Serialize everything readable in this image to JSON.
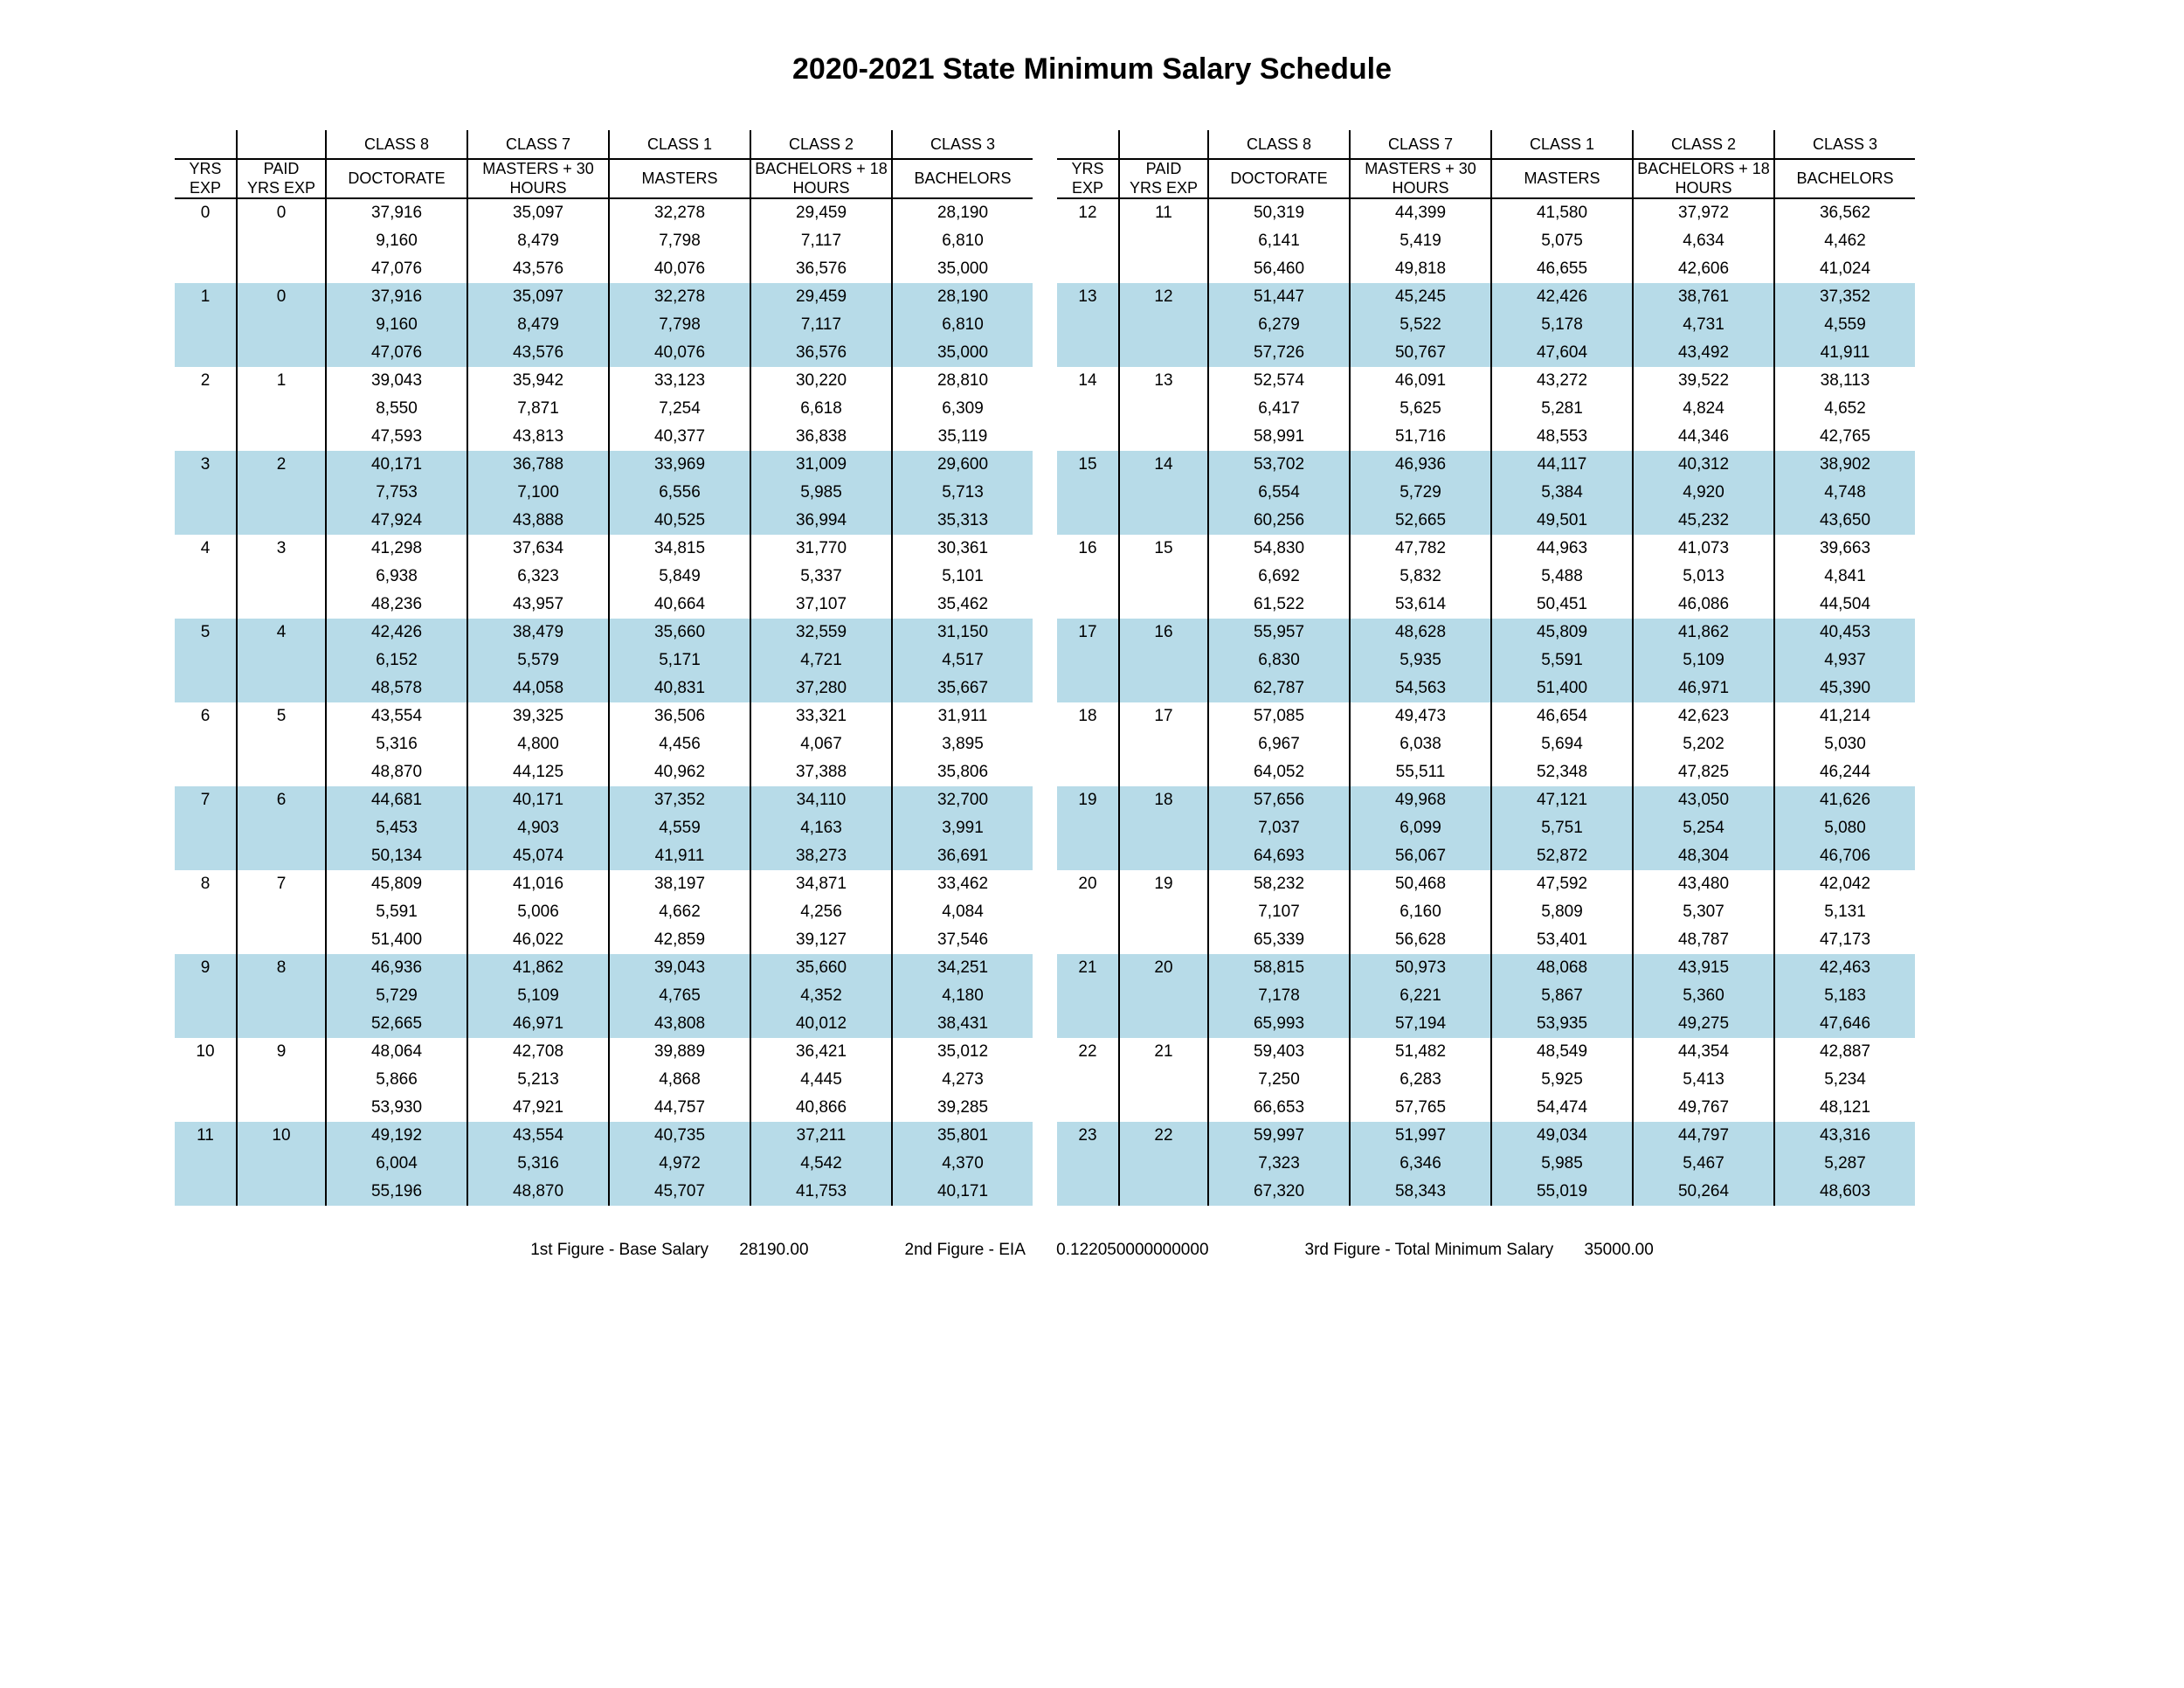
{
  "title": "2020-2021 State Minimum Salary Schedule",
  "colors": {
    "shade": "#b7dbe8",
    "border": "#000000",
    "background": "#ffffff",
    "text": "#000000"
  },
  "header_top": [
    "",
    "",
    "CLASS 8",
    "CLASS 7",
    "CLASS 1",
    "CLASS 2",
    "CLASS 3"
  ],
  "header_bot": [
    "YRS EXP",
    "PAID YRS EXP",
    "DOCTORATE",
    "MASTERS + 30 HOURS",
    "MASTERS",
    "BACHELORS + 18 HOURS",
    "BACHELORS"
  ],
  "left_rows": [
    {
      "yrs": "0",
      "paid": "0",
      "shade": false,
      "v": [
        [
          "37,916",
          "35,097",
          "32,278",
          "29,459",
          "28,190"
        ],
        [
          "9,160",
          "8,479",
          "7,798",
          "7,117",
          "6,810"
        ],
        [
          "47,076",
          "43,576",
          "40,076",
          "36,576",
          "35,000"
        ]
      ]
    },
    {
      "yrs": "1",
      "paid": "0",
      "shade": true,
      "v": [
        [
          "37,916",
          "35,097",
          "32,278",
          "29,459",
          "28,190"
        ],
        [
          "9,160",
          "8,479",
          "7,798",
          "7,117",
          "6,810"
        ],
        [
          "47,076",
          "43,576",
          "40,076",
          "36,576",
          "35,000"
        ]
      ]
    },
    {
      "yrs": "2",
      "paid": "1",
      "shade": false,
      "v": [
        [
          "39,043",
          "35,942",
          "33,123",
          "30,220",
          "28,810"
        ],
        [
          "8,550",
          "7,871",
          "7,254",
          "6,618",
          "6,309"
        ],
        [
          "47,593",
          "43,813",
          "40,377",
          "36,838",
          "35,119"
        ]
      ]
    },
    {
      "yrs": "3",
      "paid": "2",
      "shade": true,
      "v": [
        [
          "40,171",
          "36,788",
          "33,969",
          "31,009",
          "29,600"
        ],
        [
          "7,753",
          "7,100",
          "6,556",
          "5,985",
          "5,713"
        ],
        [
          "47,924",
          "43,888",
          "40,525",
          "36,994",
          "35,313"
        ]
      ]
    },
    {
      "yrs": "4",
      "paid": "3",
      "shade": false,
      "v": [
        [
          "41,298",
          "37,634",
          "34,815",
          "31,770",
          "30,361"
        ],
        [
          "6,938",
          "6,323",
          "5,849",
          "5,337",
          "5,101"
        ],
        [
          "48,236",
          "43,957",
          "40,664",
          "37,107",
          "35,462"
        ]
      ]
    },
    {
      "yrs": "5",
      "paid": "4",
      "shade": true,
      "v": [
        [
          "42,426",
          "38,479",
          "35,660",
          "32,559",
          "31,150"
        ],
        [
          "6,152",
          "5,579",
          "5,171",
          "4,721",
          "4,517"
        ],
        [
          "48,578",
          "44,058",
          "40,831",
          "37,280",
          "35,667"
        ]
      ]
    },
    {
      "yrs": "6",
      "paid": "5",
      "shade": false,
      "v": [
        [
          "43,554",
          "39,325",
          "36,506",
          "33,321",
          "31,911"
        ],
        [
          "5,316",
          "4,800",
          "4,456",
          "4,067",
          "3,895"
        ],
        [
          "48,870",
          "44,125",
          "40,962",
          "37,388",
          "35,806"
        ]
      ]
    },
    {
      "yrs": "7",
      "paid": "6",
      "shade": true,
      "v": [
        [
          "44,681",
          "40,171",
          "37,352",
          "34,110",
          "32,700"
        ],
        [
          "5,453",
          "4,903",
          "4,559",
          "4,163",
          "3,991"
        ],
        [
          "50,134",
          "45,074",
          "41,911",
          "38,273",
          "36,691"
        ]
      ]
    },
    {
      "yrs": "8",
      "paid": "7",
      "shade": false,
      "v": [
        [
          "45,809",
          "41,016",
          "38,197",
          "34,871",
          "33,462"
        ],
        [
          "5,591",
          "5,006",
          "4,662",
          "4,256",
          "4,084"
        ],
        [
          "51,400",
          "46,022",
          "42,859",
          "39,127",
          "37,546"
        ]
      ]
    },
    {
      "yrs": "9",
      "paid": "8",
      "shade": true,
      "v": [
        [
          "46,936",
          "41,862",
          "39,043",
          "35,660",
          "34,251"
        ],
        [
          "5,729",
          "5,109",
          "4,765",
          "4,352",
          "4,180"
        ],
        [
          "52,665",
          "46,971",
          "43,808",
          "40,012",
          "38,431"
        ]
      ]
    },
    {
      "yrs": "10",
      "paid": "9",
      "shade": false,
      "v": [
        [
          "48,064",
          "42,708",
          "39,889",
          "36,421",
          "35,012"
        ],
        [
          "5,866",
          "5,213",
          "4,868",
          "4,445",
          "4,273"
        ],
        [
          "53,930",
          "47,921",
          "44,757",
          "40,866",
          "39,285"
        ]
      ]
    },
    {
      "yrs": "11",
      "paid": "10",
      "shade": true,
      "v": [
        [
          "49,192",
          "43,554",
          "40,735",
          "37,211",
          "35,801"
        ],
        [
          "6,004",
          "5,316",
          "4,972",
          "4,542",
          "4,370"
        ],
        [
          "55,196",
          "48,870",
          "45,707",
          "41,753",
          "40,171"
        ]
      ]
    }
  ],
  "right_rows": [
    {
      "yrs": "12",
      "paid": "11",
      "shade": false,
      "v": [
        [
          "50,319",
          "44,399",
          "41,580",
          "37,972",
          "36,562"
        ],
        [
          "6,141",
          "5,419",
          "5,075",
          "4,634",
          "4,462"
        ],
        [
          "56,460",
          "49,818",
          "46,655",
          "42,606",
          "41,024"
        ]
      ]
    },
    {
      "yrs": "13",
      "paid": "12",
      "shade": true,
      "v": [
        [
          "51,447",
          "45,245",
          "42,426",
          "38,761",
          "37,352"
        ],
        [
          "6,279",
          "5,522",
          "5,178",
          "4,731",
          "4,559"
        ],
        [
          "57,726",
          "50,767",
          "47,604",
          "43,492",
          "41,911"
        ]
      ]
    },
    {
      "yrs": "14",
      "paid": "13",
      "shade": false,
      "v": [
        [
          "52,574",
          "46,091",
          "43,272",
          "39,522",
          "38,113"
        ],
        [
          "6,417",
          "5,625",
          "5,281",
          "4,824",
          "4,652"
        ],
        [
          "58,991",
          "51,716",
          "48,553",
          "44,346",
          "42,765"
        ]
      ]
    },
    {
      "yrs": "15",
      "paid": "14",
      "shade": true,
      "v": [
        [
          "53,702",
          "46,936",
          "44,117",
          "40,312",
          "38,902"
        ],
        [
          "6,554",
          "5,729",
          "5,384",
          "4,920",
          "4,748"
        ],
        [
          "60,256",
          "52,665",
          "49,501",
          "45,232",
          "43,650"
        ]
      ]
    },
    {
      "yrs": "16",
      "paid": "15",
      "shade": false,
      "v": [
        [
          "54,830",
          "47,782",
          "44,963",
          "41,073",
          "39,663"
        ],
        [
          "6,692",
          "5,832",
          "5,488",
          "5,013",
          "4,841"
        ],
        [
          "61,522",
          "53,614",
          "50,451",
          "46,086",
          "44,504"
        ]
      ]
    },
    {
      "yrs": "17",
      "paid": "16",
      "shade": true,
      "v": [
        [
          "55,957",
          "48,628",
          "45,809",
          "41,862",
          "40,453"
        ],
        [
          "6,830",
          "5,935",
          "5,591",
          "5,109",
          "4,937"
        ],
        [
          "62,787",
          "54,563",
          "51,400",
          "46,971",
          "45,390"
        ]
      ]
    },
    {
      "yrs": "18",
      "paid": "17",
      "shade": false,
      "v": [
        [
          "57,085",
          "49,473",
          "46,654",
          "42,623",
          "41,214"
        ],
        [
          "6,967",
          "6,038",
          "5,694",
          "5,202",
          "5,030"
        ],
        [
          "64,052",
          "55,511",
          "52,348",
          "47,825",
          "46,244"
        ]
      ]
    },
    {
      "yrs": "19",
      "paid": "18",
      "shade": true,
      "v": [
        [
          "57,656",
          "49,968",
          "47,121",
          "43,050",
          "41,626"
        ],
        [
          "7,037",
          "6,099",
          "5,751",
          "5,254",
          "5,080"
        ],
        [
          "64,693",
          "56,067",
          "52,872",
          "48,304",
          "46,706"
        ]
      ]
    },
    {
      "yrs": "20",
      "paid": "19",
      "shade": false,
      "v": [
        [
          "58,232",
          "50,468",
          "47,592",
          "43,480",
          "42,042"
        ],
        [
          "7,107",
          "6,160",
          "5,809",
          "5,307",
          "5,131"
        ],
        [
          "65,339",
          "56,628",
          "53,401",
          "48,787",
          "47,173"
        ]
      ]
    },
    {
      "yrs": "21",
      "paid": "20",
      "shade": true,
      "v": [
        [
          "58,815",
          "50,973",
          "48,068",
          "43,915",
          "42,463"
        ],
        [
          "7,178",
          "6,221",
          "5,867",
          "5,360",
          "5,183"
        ],
        [
          "65,993",
          "57,194",
          "53,935",
          "49,275",
          "47,646"
        ]
      ]
    },
    {
      "yrs": "22",
      "paid": "21",
      "shade": false,
      "v": [
        [
          "59,403",
          "51,482",
          "48,549",
          "44,354",
          "42,887"
        ],
        [
          "7,250",
          "6,283",
          "5,925",
          "5,413",
          "5,234"
        ],
        [
          "66,653",
          "57,765",
          "54,474",
          "49,767",
          "48,121"
        ]
      ]
    },
    {
      "yrs": "23",
      "paid": "22",
      "shade": true,
      "v": [
        [
          "59,997",
          "51,997",
          "49,034",
          "44,797",
          "43,316"
        ],
        [
          "7,323",
          "6,346",
          "5,985",
          "5,467",
          "5,287"
        ],
        [
          "67,320",
          "58,343",
          "55,019",
          "50,264",
          "48,603"
        ]
      ]
    }
  ],
  "footer": {
    "f1_label": "1st Figure - Base Salary",
    "f1_val": "28190.00",
    "f2_label": "2nd Figure - EIA",
    "f2_val": "0.122050000000000",
    "f3_label": "3rd Figure - Total Minimum Salary",
    "f3_val": "35000.00"
  }
}
